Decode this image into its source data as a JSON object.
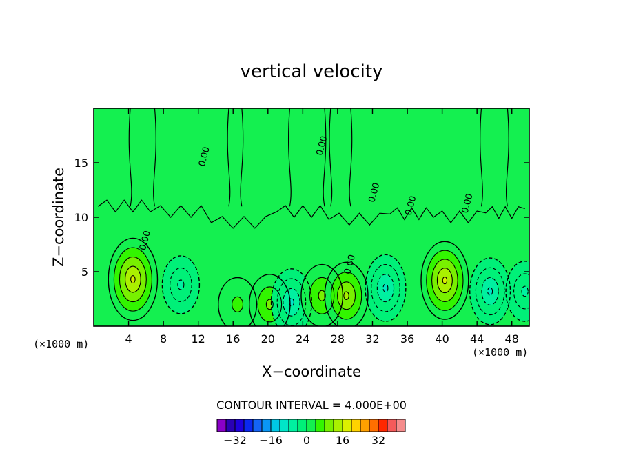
{
  "chart_data": {
    "type": "heatmap",
    "title": "vertical velocity",
    "xlabel": "X−coordinate",
    "ylabel": "Z−coordinate",
    "x_unit": "(×1000 m)",
    "z_unit": "(×1000 m)",
    "xlim": [
      0,
      50
    ],
    "ylim": [
      0,
      20
    ],
    "x_ticks": [
      4,
      8,
      12,
      16,
      20,
      24,
      28,
      32,
      36,
      40,
      44,
      48
    ],
    "y_ticks": [
      5,
      10,
      15
    ],
    "contour_interval_label": "CONTOUR INTERVAL = 4.000E+00",
    "contour_interval": 4,
    "zero_label": "0.00",
    "colorbar": {
      "levels": [
        -40,
        -36,
        -32,
        -28,
        -24,
        -20,
        -16,
        -12,
        -8,
        -4,
        0,
        4,
        8,
        12,
        16,
        20,
        24,
        28,
        32,
        36,
        40
      ],
      "colors": [
        "#8a00c8",
        "#2a00b4",
        "#1e00dc",
        "#0a28f0",
        "#1464f5",
        "#0a96f5",
        "#00c8e6",
        "#00e6c8",
        "#00f0a0",
        "#00f078",
        "#14f050",
        "#32f500",
        "#78f000",
        "#aaf000",
        "#dcf000",
        "#ffd200",
        "#ffa000",
        "#ff6e00",
        "#ff2800",
        "#f55a5a",
        "#f58c8c"
      ],
      "tick_labels": [
        "−32",
        "−16",
        "0",
        "16",
        "32"
      ],
      "tick_values": [
        -32,
        -16,
        0,
        16,
        32
      ]
    },
    "field_features": [
      {
        "x": 4.5,
        "z": 4.3,
        "value": 16,
        "kind": "updraft"
      },
      {
        "x": 10.0,
        "z": 3.8,
        "value": -5,
        "kind": "downdraft"
      },
      {
        "x": 16.5,
        "z": 2.0,
        "value": 3,
        "kind": "updraft"
      },
      {
        "x": 20.2,
        "z": 2.0,
        "value": 6,
        "kind": "updraft"
      },
      {
        "x": 22.7,
        "z": 2.2,
        "value": -9,
        "kind": "downdraft"
      },
      {
        "x": 26.2,
        "z": 2.8,
        "value": 7,
        "kind": "updraft"
      },
      {
        "x": 29.0,
        "z": 2.8,
        "value": 9,
        "kind": "updraft"
      },
      {
        "x": 33.5,
        "z": 3.5,
        "value": -9,
        "kind": "downdraft"
      },
      {
        "x": 40.3,
        "z": 4.2,
        "value": 14,
        "kind": "updraft"
      },
      {
        "x": 45.5,
        "z": 3.2,
        "value": -9,
        "kind": "downdraft"
      },
      {
        "x": 49.5,
        "z": 3.2,
        "value": -6,
        "kind": "downdraft"
      }
    ]
  },
  "colors": {
    "background": "#14f050",
    "frame": "#000000",
    "contour": "#000000"
  }
}
